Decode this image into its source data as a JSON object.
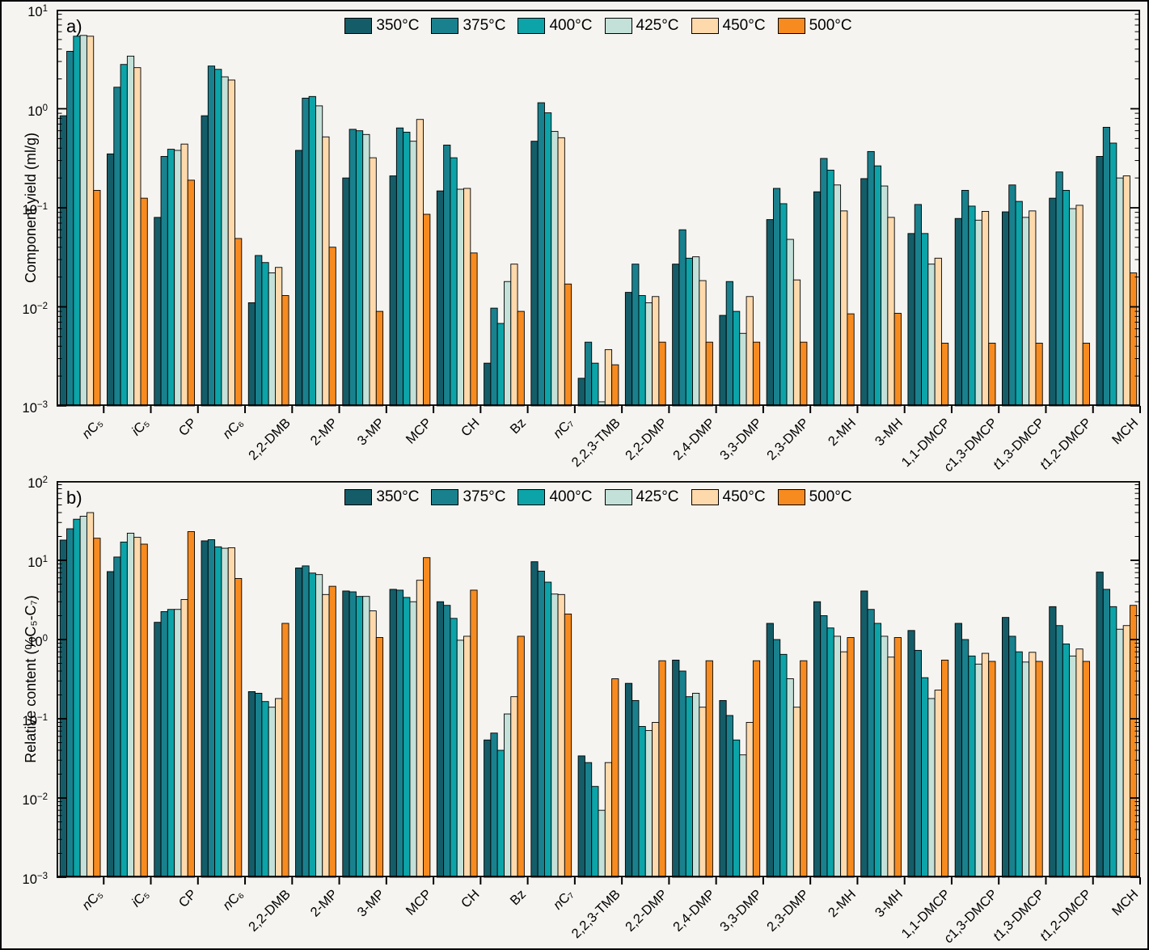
{
  "figure": {
    "background": "#f5f4f1",
    "border_color": "#000000",
    "bar_edge_color": "#000000"
  },
  "chart_data": [
    {
      "type": "bar",
      "panel_letter": "a)",
      "ylabel": "Component yield (ml/g)",
      "yscale": "log",
      "ylim": [
        0.001,
        10
      ],
      "grid": false,
      "legend_position": "top-center",
      "categories": [
        "nC₅",
        "iC₅",
        "CP",
        "nC₆",
        "2,2-DMB",
        "2-MP",
        "3-MP",
        "MCP",
        "CH",
        "Bz",
        "nC₇",
        "2,2,3-TMB",
        "2,2-DMP",
        "2,4-DMP",
        "3,3-DMP",
        "2,3-DMP",
        "2-MH",
        "3-MH",
        "1,1-DMCP",
        "c1,3-DMCP",
        "t1,3-DMCP",
        "t1,2-DMCP",
        "MCH"
      ],
      "series": [
        {
          "name": "350°C",
          "color": "#145d68",
          "values": [
            0.85,
            0.35,
            0.08,
            0.85,
            0.011,
            0.38,
            0.2,
            0.21,
            0.148,
            0.0027,
            0.47,
            0.0019,
            0.014,
            0.027,
            0.0082,
            0.076,
            0.145,
            0.197,
            0.055,
            0.078,
            0.091,
            0.125,
            0.33
          ]
        },
        {
          "name": "375°C",
          "color": "#19818d",
          "values": [
            3.8,
            1.65,
            0.33,
            2.7,
            0.033,
            1.28,
            0.62,
            0.64,
            0.43,
            0.0097,
            1.15,
            0.0044,
            0.027,
            0.06,
            0.018,
            0.157,
            0.315,
            0.37,
            0.108,
            0.15,
            0.17,
            0.23,
            0.65
          ]
        },
        {
          "name": "400°C",
          "color": "#0ca4a8",
          "values": [
            5.4,
            2.8,
            0.39,
            2.5,
            0.028,
            1.33,
            0.6,
            0.58,
            0.32,
            0.0068,
            0.91,
            0.0027,
            0.013,
            0.031,
            0.009,
            0.11,
            0.24,
            0.265,
            0.055,
            0.104,
            0.116,
            0.15,
            0.45
          ]
        },
        {
          "name": "425°C",
          "color": "#c3e1d8",
          "values": [
            5.5,
            3.4,
            0.38,
            2.1,
            0.022,
            1.07,
            0.55,
            0.47,
            0.154,
            0.018,
            0.59,
            0.0011,
            0.011,
            0.032,
            0.0054,
            0.048,
            0.17,
            0.166,
            0.027,
            0.075,
            0.08,
            0.098,
            0.2
          ]
        },
        {
          "name": "450°C",
          "color": "#fdd9ac",
          "values": [
            5.4,
            2.6,
            0.44,
            1.95,
            0.025,
            0.52,
            0.32,
            0.78,
            0.157,
            0.027,
            0.51,
            0.0037,
            0.0127,
            0.0184,
            0.0127,
            0.0187,
            0.093,
            0.08,
            0.031,
            0.092,
            0.093,
            0.106,
            0.21
          ]
        },
        {
          "name": "500°C",
          "color": "#f78b20",
          "values": [
            0.15,
            0.125,
            0.19,
            0.049,
            0.013,
            0.04,
            0.009,
            0.086,
            0.035,
            0.009,
            0.017,
            0.0026,
            0.0044,
            0.0044,
            0.0044,
            0.0044,
            0.0085,
            0.0086,
            0.0043,
            0.0043,
            0.0043,
            0.0043,
            0.022
          ]
        }
      ]
    },
    {
      "type": "bar",
      "panel_letter": "b)",
      "ylabel": "Relative content (%C₅-C₇)",
      "yscale": "log",
      "ylim": [
        0.001,
        100
      ],
      "grid": false,
      "legend_position": "top-center",
      "categories": [
        "nC₅",
        "iC₅",
        "CP",
        "nC₆",
        "2,2-DMB",
        "2-MP",
        "3-MP",
        "MCP",
        "CH",
        "Bz",
        "nC₇",
        "2,2,3-TMB",
        "2,2-DMP",
        "2,4-DMP",
        "3,3-DMP",
        "2,3-DMP",
        "2-MH",
        "3-MH",
        "1,1-DMCP",
        "c1,3-DMCP",
        "t1,3-DMCP",
        "t1,2-DMCP",
        "MCH"
      ],
      "series": [
        {
          "name": "350°C",
          "color": "#145d68",
          "values": [
            18,
            7.2,
            1.65,
            17.6,
            0.22,
            8.0,
            4.1,
            4.3,
            3.0,
            0.054,
            9.6,
            0.034,
            0.28,
            0.55,
            0.17,
            1.6,
            3.0,
            4.1,
            1.3,
            1.6,
            1.9,
            2.6,
            7.1
          ]
        },
        {
          "name": "375°C",
          "color": "#19818d",
          "values": [
            25,
            11,
            2.25,
            18.2,
            0.21,
            8.5,
            4.0,
            4.2,
            2.7,
            0.066,
            7.3,
            0.028,
            0.17,
            0.4,
            0.11,
            1.0,
            2.0,
            2.4,
            0.73,
            1.0,
            1.1,
            1.5,
            4.3
          ]
        },
        {
          "name": "400°C",
          "color": "#0ca4a8",
          "values": [
            33,
            17,
            2.4,
            14.8,
            0.165,
            6.9,
            3.5,
            3.4,
            1.85,
            0.04,
            5.3,
            0.014,
            0.08,
            0.19,
            0.054,
            0.65,
            1.4,
            1.6,
            0.33,
            0.62,
            0.7,
            0.88,
            2.6
          ]
        },
        {
          "name": "425°C",
          "color": "#c3e1d8",
          "values": [
            36,
            22,
            2.4,
            14.2,
            0.14,
            6.6,
            3.5,
            3.0,
            0.98,
            0.115,
            3.75,
            0.007,
            0.071,
            0.21,
            0.035,
            0.32,
            1.1,
            1.1,
            0.18,
            0.49,
            0.52,
            0.62,
            1.35
          ]
        },
        {
          "name": "450°C",
          "color": "#fdd9ac",
          "values": [
            40,
            19.5,
            3.2,
            14.4,
            0.18,
            3.7,
            2.3,
            5.6,
            1.1,
            0.19,
            3.7,
            0.028,
            0.09,
            0.14,
            0.09,
            0.14,
            0.7,
            0.6,
            0.23,
            0.67,
            0.69,
            0.76,
            1.5
          ]
        },
        {
          "name": "500°C",
          "color": "#f78b20",
          "values": [
            19,
            16,
            23,
            5.9,
            1.6,
            4.7,
            1.06,
            10.8,
            4.2,
            1.1,
            2.1,
            0.32,
            0.54,
            0.54,
            0.54,
            0.54,
            1.06,
            1.06,
            0.55,
            0.53,
            0.53,
            0.53,
            2.7
          ]
        }
      ]
    }
  ]
}
